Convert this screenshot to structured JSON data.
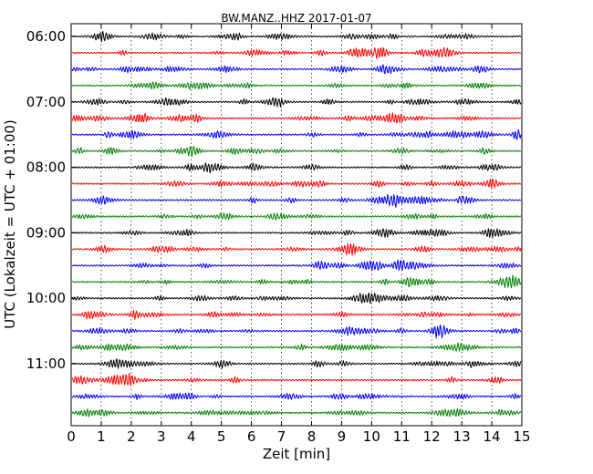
{
  "chart_data": {
    "type": "line",
    "title": "BW.MANZ..HHZ 2017-01-07",
    "xlabel": "Zeit  [min]",
    "ylabel": "UTC (Lokalzeit = UTC + 01:00)",
    "xlim": [
      0,
      15
    ],
    "x_ticks": [
      "0",
      "1",
      "2",
      "3",
      "4",
      "5",
      "6",
      "7",
      "8",
      "9",
      "10",
      "11",
      "12",
      "13",
      "14",
      "15"
    ],
    "y_tick_labels": [
      "06:00",
      "07:00",
      "08:00",
      "09:00",
      "10:00",
      "11:00"
    ],
    "trace_minutes": 15,
    "traces_per_hour": 4,
    "grid": "vertical dotted at each minute",
    "legend": "none",
    "series": [
      {
        "start": "06:00",
        "color": "#000000"
      },
      {
        "start": "06:15",
        "color": "#ff0000"
      },
      {
        "start": "06:30",
        "color": "#0000ff"
      },
      {
        "start": "06:45",
        "color": "#008000"
      },
      {
        "start": "07:00",
        "color": "#000000"
      },
      {
        "start": "07:15",
        "color": "#ff0000"
      },
      {
        "start": "07:30",
        "color": "#0000ff"
      },
      {
        "start": "07:45",
        "color": "#008000"
      },
      {
        "start": "08:00",
        "color": "#000000"
      },
      {
        "start": "08:15",
        "color": "#ff0000"
      },
      {
        "start": "08:30",
        "color": "#0000ff"
      },
      {
        "start": "08:45",
        "color": "#008000"
      },
      {
        "start": "09:00",
        "color": "#000000"
      },
      {
        "start": "09:15",
        "color": "#ff0000"
      },
      {
        "start": "09:30",
        "color": "#0000ff"
      },
      {
        "start": "09:45",
        "color": "#008000"
      },
      {
        "start": "10:00",
        "color": "#000000"
      },
      {
        "start": "10:15",
        "color": "#ff0000"
      },
      {
        "start": "10:30",
        "color": "#0000ff"
      },
      {
        "start": "10:45",
        "color": "#008000"
      },
      {
        "start": "11:00",
        "color": "#000000"
      },
      {
        "start": "11:15",
        "color": "#ff0000"
      },
      {
        "start": "11:30",
        "color": "#0000ff"
      },
      {
        "start": "11:45",
        "color": "#008000"
      }
    ]
  }
}
